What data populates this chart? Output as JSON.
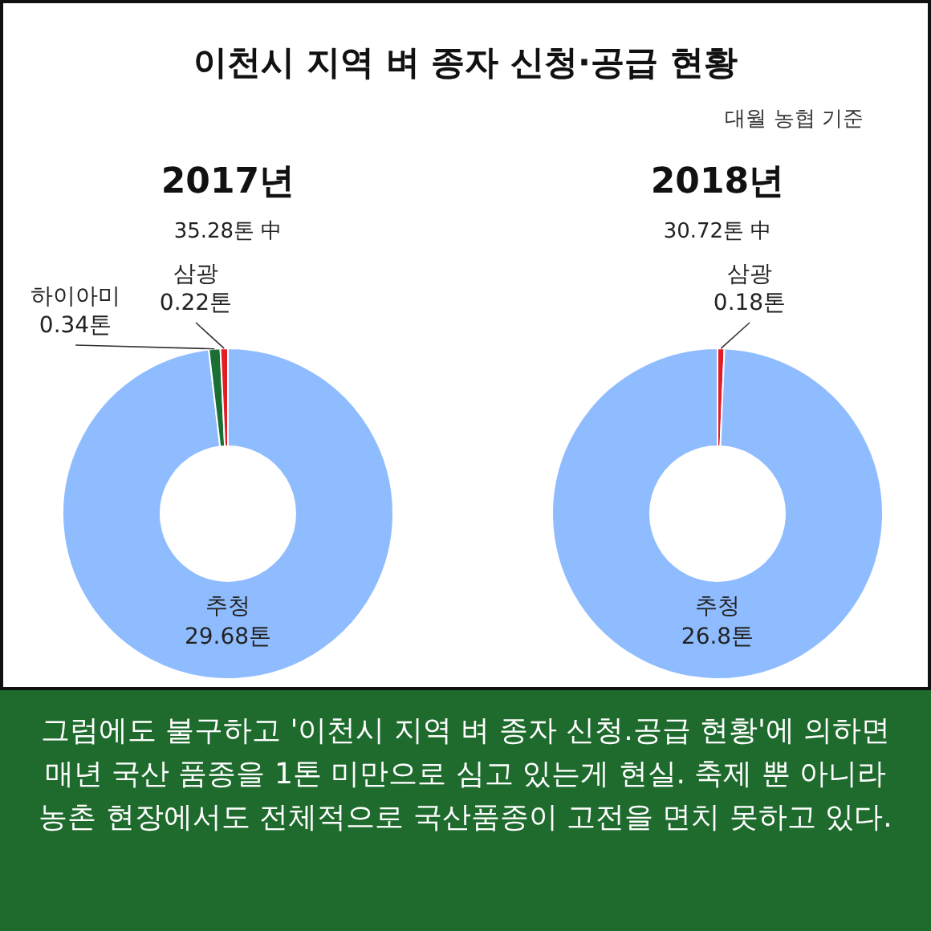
{
  "chart_data": [
    {
      "type": "other",
      "title": "이천시 지역 벼 종자 신청·공급 현황",
      "annotations": [
        "대월 농협 기준",
        "그럼에도 불구하고 '이천시 지역 벼 종자 신청.공급 현황'에 의하면 매년 국산 품종을 1톤 미만으로 심고 있는게 현실. 축제 뿐 아니라 농촌 현장에서도 전체적으로 국산품종이 고전을 면치 못하고 있다."
      ]
    },
    {
      "type": "donut",
      "title": "2017년",
      "subtitle": "35.28톤 中",
      "categories": [
        "추청",
        "하이아미",
        "삼광"
      ],
      "values": [
        29.68,
        0.34,
        0.22
      ],
      "value_labels": [
        "29.68톤",
        "0.34톤",
        "0.22톤"
      ],
      "colors": [
        "#8fbcff",
        "#1a7033",
        "#e11d28"
      ]
    },
    {
      "type": "donut",
      "title": "2018년",
      "subtitle": "30.72톤 中",
      "categories": [
        "삼광",
        "추청"
      ],
      "values": [
        0.18,
        26.8
      ],
      "value_labels": [
        "0.18톤",
        "26.8톤"
      ],
      "colors": [
        "#e11d28",
        "#8fbcff"
      ]
    }
  ]
}
